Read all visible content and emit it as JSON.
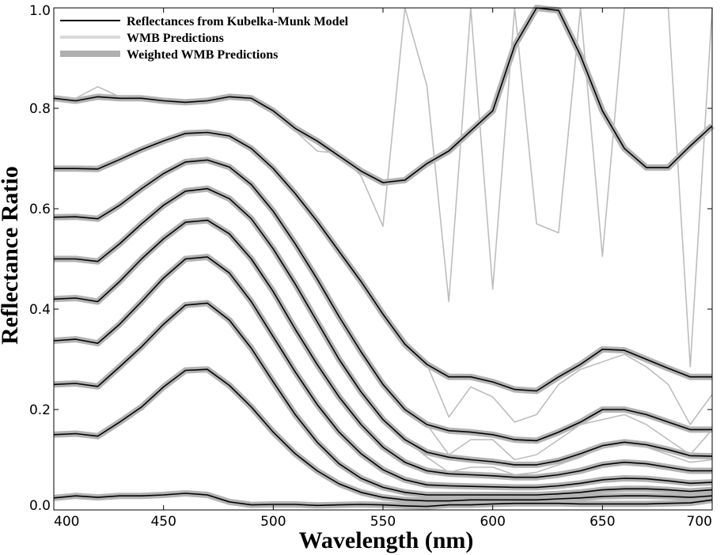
{
  "chart_data": {
    "type": "line",
    "title": "",
    "xlabel": "Wavelength (nm)",
    "ylabel": "Reflectance Ratio",
    "xlim": [
      400,
      700
    ],
    "ylim": [
      0.0,
      1.0
    ],
    "xticks": [
      400,
      450,
      500,
      550,
      600,
      650,
      700
    ],
    "yticks": [
      0.0,
      0.2,
      0.4,
      0.6,
      0.8,
      1.0
    ],
    "ytick_labels": [
      "0.0",
      "0.2",
      "0.4",
      "0.6",
      "0.8",
      "1.0"
    ],
    "legend": {
      "position": "top-left",
      "entries": [
        {
          "label": "Reflectances from Kubelka-Munk Model",
          "color": "#000000",
          "style": "thin"
        },
        {
          "label": "WMB Predictions",
          "color": "#d9d9d9",
          "style": "medium"
        },
        {
          "label": "Weighted WMB Predictions",
          "color": "#b0b0b0",
          "style": "thick"
        }
      ]
    },
    "colors": {
      "km": "#000000",
      "wmb": "#bdbdbd",
      "weighted": "#b3b3b3"
    },
    "x": [
      400,
      410,
      420,
      430,
      440,
      450,
      460,
      470,
      480,
      490,
      500,
      510,
      520,
      530,
      540,
      550,
      560,
      570,
      580,
      590,
      600,
      610,
      620,
      630,
      640,
      650,
      660,
      670,
      680,
      690,
      700
    ],
    "series": [
      {
        "name": "Reflectances from Kubelka-Munk Model",
        "group": "curve-1",
        "values": [
          0.82,
          0.815,
          0.823,
          0.82,
          0.82,
          0.815,
          0.812,
          0.815,
          0.823,
          0.82,
          0.795,
          0.76,
          0.735,
          0.705,
          0.675,
          0.652,
          0.657,
          0.69,
          0.715,
          0.755,
          0.795,
          0.925,
          1.0,
          0.995,
          0.905,
          0.795,
          0.72,
          0.682,
          0.682,
          0.725,
          0.765
        ]
      },
      {
        "name": "Reflectances from Kubelka-Munk Model",
        "group": "curve-2",
        "values": [
          0.68,
          0.68,
          0.679,
          0.698,
          0.718,
          0.735,
          0.75,
          0.752,
          0.745,
          0.72,
          0.68,
          0.63,
          0.575,
          0.515,
          0.455,
          0.39,
          0.33,
          0.29,
          0.265,
          0.265,
          0.255,
          0.24,
          0.237,
          0.265,
          0.29,
          0.32,
          0.318,
          0.3,
          0.282,
          0.265,
          0.265
        ]
      },
      {
        "name": "Reflectances from Kubelka-Munk Model",
        "group": "curve-3",
        "values": [
          0.583,
          0.584,
          0.58,
          0.607,
          0.64,
          0.67,
          0.693,
          0.697,
          0.683,
          0.648,
          0.595,
          0.53,
          0.46,
          0.385,
          0.315,
          0.25,
          0.2,
          0.17,
          0.158,
          0.155,
          0.15,
          0.14,
          0.138,
          0.155,
          0.175,
          0.2,
          0.2,
          0.19,
          0.175,
          0.16,
          0.16
        ]
      },
      {
        "name": "Reflectances from Kubelka-Munk Model",
        "group": "curve-4",
        "values": [
          0.5,
          0.5,
          0.495,
          0.53,
          0.57,
          0.607,
          0.635,
          0.64,
          0.62,
          0.58,
          0.52,
          0.45,
          0.375,
          0.3,
          0.235,
          0.18,
          0.14,
          0.115,
          0.105,
          0.1,
          0.096,
          0.09,
          0.09,
          0.098,
          0.112,
          0.128,
          0.135,
          0.13,
          0.12,
          0.108,
          0.107
        ]
      },
      {
        "name": "Reflectances from Kubelka-Munk Model",
        "group": "curve-5",
        "values": [
          0.42,
          0.422,
          0.415,
          0.455,
          0.5,
          0.54,
          0.573,
          0.577,
          0.55,
          0.5,
          0.435,
          0.36,
          0.29,
          0.225,
          0.17,
          0.125,
          0.095,
          0.078,
          0.072,
          0.07,
          0.068,
          0.065,
          0.065,
          0.07,
          0.078,
          0.09,
          0.095,
          0.092,
          0.085,
          0.078,
          0.078
        ]
      },
      {
        "name": "Reflectances from Kubelka-Munk Model",
        "group": "curve-6",
        "values": [
          0.337,
          0.34,
          0.332,
          0.37,
          0.415,
          0.462,
          0.5,
          0.504,
          0.472,
          0.415,
          0.345,
          0.275,
          0.21,
          0.155,
          0.112,
          0.08,
          0.06,
          0.05,
          0.048,
          0.047,
          0.046,
          0.045,
          0.045,
          0.048,
          0.053,
          0.06,
          0.063,
          0.062,
          0.058,
          0.053,
          0.055
        ]
      },
      {
        "name": "Reflectances from Kubelka-Munk Model",
        "group": "curve-7",
        "values": [
          0.25,
          0.252,
          0.246,
          0.285,
          0.325,
          0.37,
          0.408,
          0.412,
          0.378,
          0.322,
          0.255,
          0.19,
          0.135,
          0.092,
          0.063,
          0.045,
          0.035,
          0.03,
          0.03,
          0.03,
          0.03,
          0.03,
          0.03,
          0.032,
          0.035,
          0.04,
          0.042,
          0.042,
          0.04,
          0.037,
          0.04
        ]
      },
      {
        "name": "Reflectances from Kubelka-Munk Model",
        "group": "curve-8",
        "values": [
          0.15,
          0.152,
          0.147,
          0.175,
          0.205,
          0.245,
          0.278,
          0.28,
          0.248,
          0.205,
          0.155,
          0.112,
          0.078,
          0.052,
          0.035,
          0.025,
          0.02,
          0.018,
          0.018,
          0.02,
          0.02,
          0.02,
          0.02,
          0.022,
          0.024,
          0.027,
          0.028,
          0.028,
          0.027,
          0.025,
          0.028
        ]
      },
      {
        "name": "Reflectances from Kubelka-Munk Model",
        "group": "curve-9",
        "values": [
          0.024,
          0.028,
          0.025,
          0.028,
          0.028,
          0.03,
          0.033,
          0.03,
          0.016,
          0.01,
          0.011,
          0.011,
          0.009,
          0.01,
          0.011,
          0.01,
          0.008,
          0.007,
          0.01,
          0.01,
          0.012,
          0.013,
          0.013,
          0.013,
          0.012,
          0.012,
          0.012,
          0.012,
          0.013,
          0.014,
          0.02
        ]
      },
      {
        "name": "WMB Predictions",
        "group": "outlier-1",
        "values": [
          0.82,
          0.82,
          0.843,
          0.823,
          0.82,
          0.815,
          0.812,
          0.815,
          0.823,
          0.82,
          0.795,
          0.755,
          0.715,
          0.71,
          0.665,
          0.565,
          1.0,
          0.845,
          0.415,
          1.0,
          0.44,
          1.0,
          0.57,
          0.552,
          1.0,
          0.505,
          1.0,
          1.0,
          1.0,
          0.285,
          1.0
        ]
      },
      {
        "name": "WMB Predictions",
        "group": "outlier-2",
        "values": [
          0.68,
          0.68,
          0.679,
          0.698,
          0.718,
          0.735,
          0.75,
          0.752,
          0.745,
          0.72,
          0.68,
          0.63,
          0.575,
          0.515,
          0.455,
          0.39,
          0.33,
          0.29,
          0.185,
          0.245,
          0.225,
          0.175,
          0.19,
          0.25,
          0.28,
          0.295,
          0.31,
          0.285,
          0.25,
          0.17,
          0.23
        ]
      },
      {
        "name": "WMB Predictions",
        "group": "outlier-3",
        "values": [
          0.583,
          0.584,
          0.58,
          0.607,
          0.64,
          0.67,
          0.693,
          0.697,
          0.683,
          0.648,
          0.595,
          0.53,
          0.46,
          0.385,
          0.315,
          0.25,
          0.2,
          0.17,
          0.11,
          0.14,
          0.14,
          0.1,
          0.11,
          0.14,
          0.17,
          0.18,
          0.19,
          0.17,
          0.14,
          0.11,
          0.16
        ]
      },
      {
        "name": "WMB Predictions",
        "group": "outlier-4",
        "values": [
          0.5,
          0.5,
          0.495,
          0.53,
          0.57,
          0.607,
          0.635,
          0.64,
          0.62,
          0.58,
          0.52,
          0.45,
          0.375,
          0.3,
          0.235,
          0.18,
          0.14,
          0.105,
          0.075,
          0.085,
          0.085,
          0.07,
          0.075,
          0.09,
          0.105,
          0.125,
          0.13,
          0.125,
          0.11,
          0.095,
          0.1
        ]
      }
    ]
  }
}
